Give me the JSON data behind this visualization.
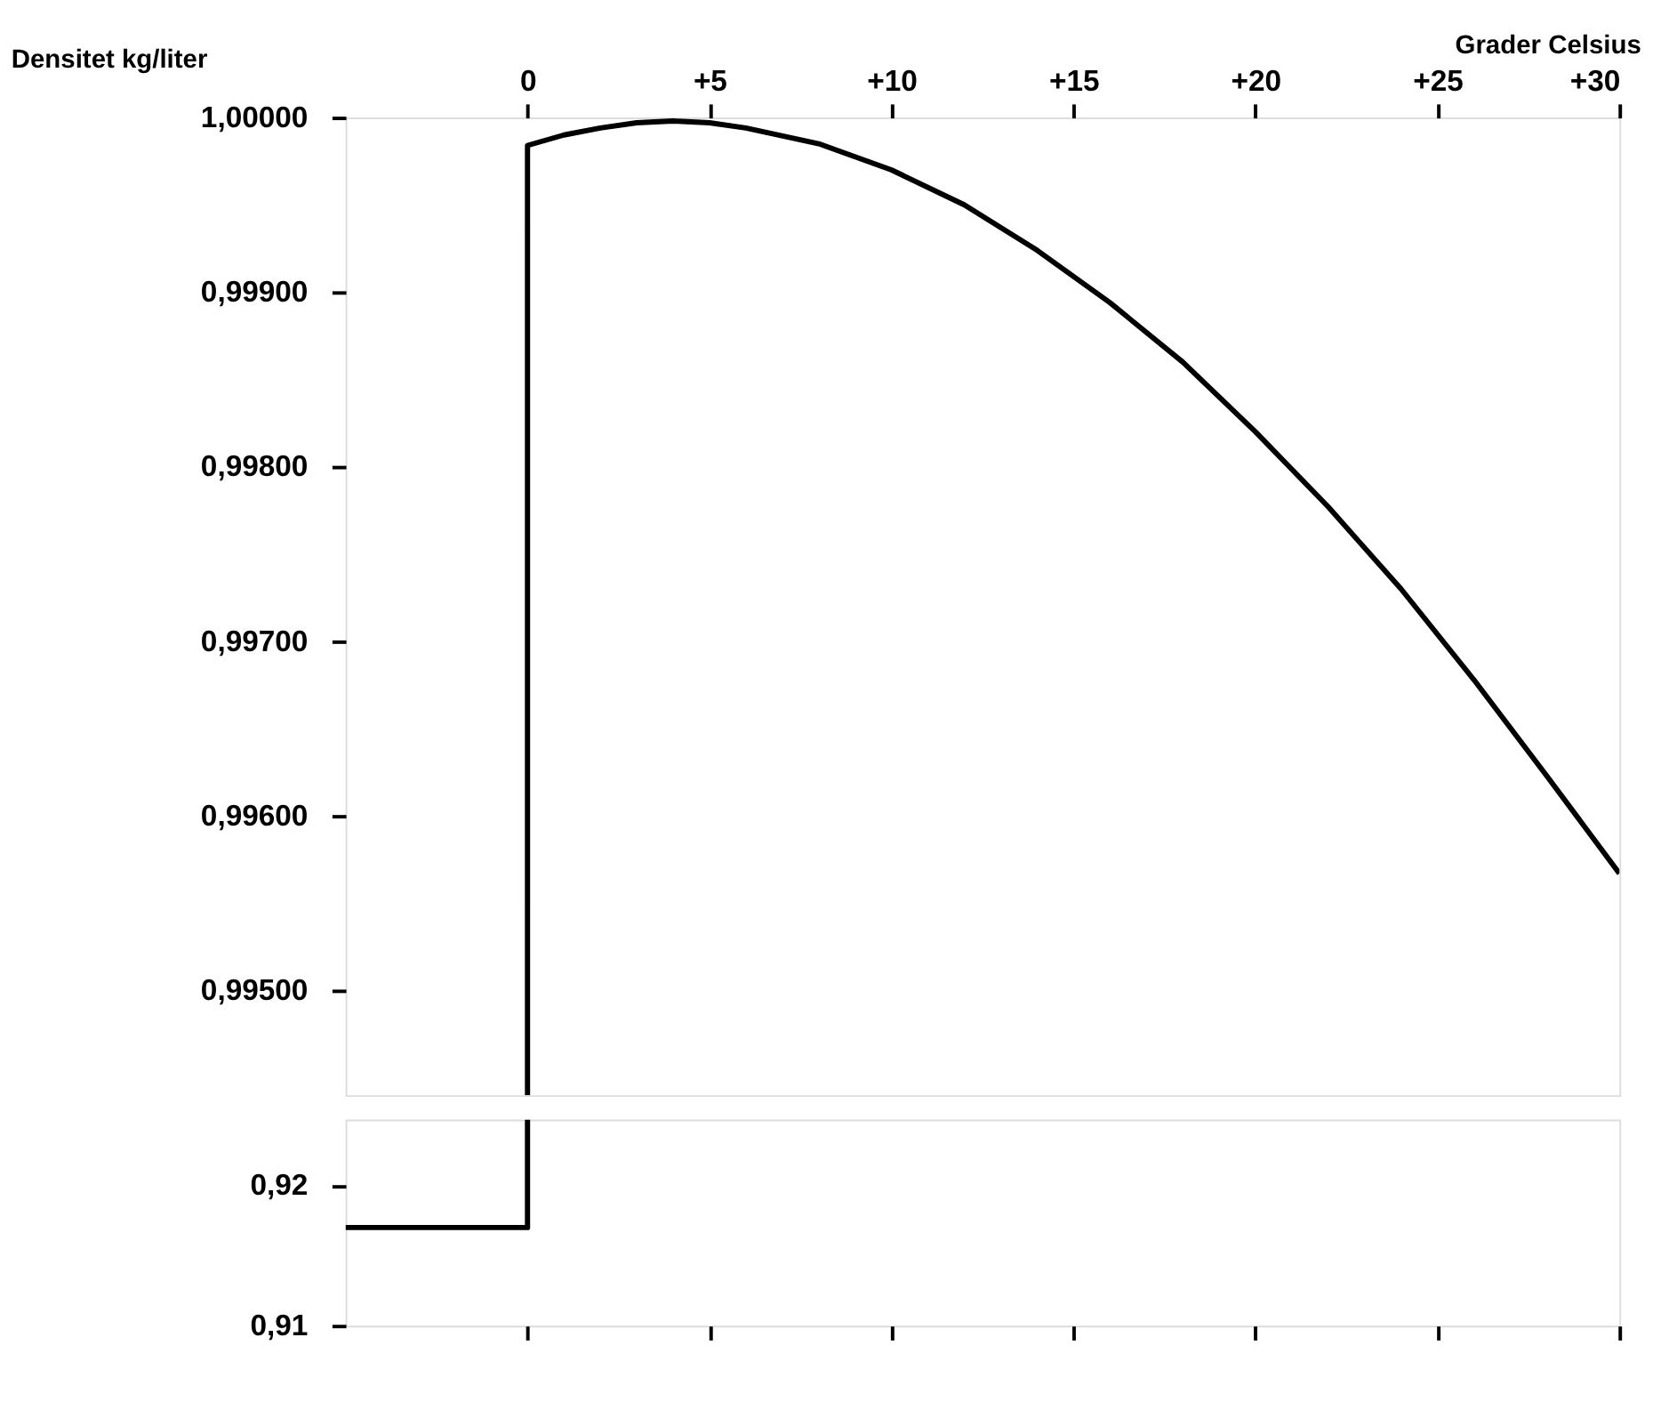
{
  "chart_data": [
    {
      "type": "line",
      "xlabel": "Grader Celsius",
      "ylabel": "Densitet kg/liter",
      "xlim": [
        -5,
        30
      ],
      "xticks": [
        {
          "value": 0,
          "label": "0"
        },
        {
          "value": 5,
          "label": "+5"
        },
        {
          "value": 10,
          "label": "+10"
        },
        {
          "value": 15,
          "label": "+15"
        },
        {
          "value": 20,
          "label": "+20"
        },
        {
          "value": 25,
          "label": "+25"
        },
        {
          "value": 30,
          "label": "+30"
        }
      ],
      "ylim": [
        0.9944,
        1.0
      ],
      "yticks": [
        {
          "value": 0.995,
          "label": "0,99500"
        },
        {
          "value": 0.996,
          "label": "0,99600"
        },
        {
          "value": 0.997,
          "label": "0,99700"
        },
        {
          "value": 0.998,
          "label": "0,99800"
        },
        {
          "value": 0.999,
          "label": "0,99900"
        },
        {
          "value": 1.0,
          "label": "1,00000"
        }
      ],
      "grid": false,
      "line_style": "solid",
      "marker": "none",
      "series": [
        {
          "color": "#000000",
          "x": [
            0,
            0,
            1,
            2,
            3,
            4,
            5,
            6,
            8,
            10,
            12,
            14,
            16,
            18,
            20,
            22,
            24,
            26,
            28,
            30
          ],
          "values": [
            0.9944,
            0.99984,
            0.9999,
            0.99994,
            0.99997,
            0.99998,
            0.99997,
            0.99994,
            0.99985,
            0.9997,
            0.9995,
            0.99924,
            0.99894,
            0.9986,
            0.9982,
            0.99777,
            0.9973,
            0.99678,
            0.99623,
            0.99567
          ]
        }
      ]
    },
    {
      "type": "line",
      "xlim": [
        -5,
        30
      ],
      "xticks": [
        {
          "value": 0,
          "label": null
        },
        {
          "value": 5,
          "label": null
        },
        {
          "value": 10,
          "label": null
        },
        {
          "value": 15,
          "label": null
        },
        {
          "value": 20,
          "label": null
        },
        {
          "value": 25,
          "label": null
        },
        {
          "value": 30,
          "label": null
        }
      ],
      "ylim": [
        0.91,
        0.9247
      ],
      "yticks": [
        {
          "value": 0.91,
          "label": "0,91"
        },
        {
          "value": 0.92,
          "label": "0,92"
        }
      ],
      "tick_labels": "y",
      "grid": false,
      "line_style": "solid",
      "marker": "none",
      "series": [
        {
          "color": "#000000",
          "x": [
            -5,
            0,
            0
          ],
          "values": [
            0.917,
            0.917,
            0.9247
          ]
        }
      ]
    }
  ]
}
